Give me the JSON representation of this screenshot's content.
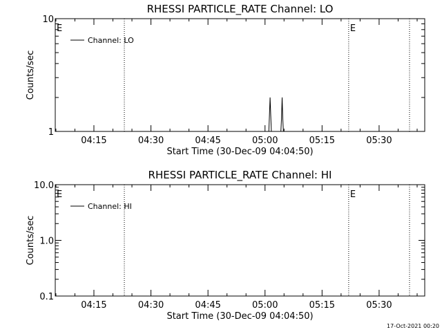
{
  "footer": {
    "timestamp": "17-Oct-2021 00:20"
  },
  "chart_data": [
    {
      "type": "line",
      "title": "RHESSI PARTICLE_RATE Channel: LO",
      "xlabel": "Start Time (30-Dec-09 04:04:50)",
      "ylabel": "Counts/sec",
      "yscale": "log",
      "ylim": [
        1,
        10
      ],
      "ytick_values": [
        1,
        10
      ],
      "ytick_labels": [
        "1",
        "10"
      ],
      "xlim": [
        "04:04:50",
        "05:42:00"
      ],
      "xtick_values": [
        "04:15",
        "04:30",
        "04:45",
        "05:00",
        "05:15",
        "05:30"
      ],
      "xtick_labels": [
        "04:15",
        "04:30",
        "04:45",
        "05:00",
        "05:15",
        "05:30"
      ],
      "legend": {
        "position": "top-left",
        "entries": [
          "Channel: LO"
        ]
      },
      "markers": [
        {
          "time": "04:04:50",
          "label": "E",
          "dotted": false
        },
        {
          "time": "04:23:00",
          "label": "",
          "dotted": true
        },
        {
          "time": "05:22:00",
          "label": "E",
          "dotted": true
        },
        {
          "time": "05:38:00",
          "label": "",
          "dotted": true
        }
      ],
      "series": [
        {
          "name": "Channel: LO",
          "x": [
            "04:04:50",
            "05:01:00",
            "05:01:10",
            "05:01:20",
            "05:01:30",
            "05:01:40",
            "05:04:10",
            "05:04:20",
            "05:04:30",
            "05:04:40",
            "05:04:50",
            "05:42:00"
          ],
          "y": [
            1,
            1,
            1.4,
            2,
            1.4,
            1,
            1,
            1.3,
            2,
            1.3,
            1,
            1
          ]
        }
      ]
    },
    {
      "type": "line",
      "title": "RHESSI PARTICLE_RATE Channel: HI",
      "xlabel": "Start Time (30-Dec-09 04:04:50)",
      "ylabel": "Counts/sec",
      "yscale": "log",
      "ylim": [
        0.1,
        10
      ],
      "ytick_values": [
        0.1,
        1,
        10
      ],
      "ytick_labels": [
        "0.1",
        "1.0",
        "10.0"
      ],
      "xlim": [
        "04:04:50",
        "05:42:00"
      ],
      "xtick_values": [
        "04:15",
        "04:30",
        "04:45",
        "05:00",
        "05:15",
        "05:30"
      ],
      "xtick_labels": [
        "04:15",
        "04:30",
        "04:45",
        "05:00",
        "05:15",
        "05:30"
      ],
      "legend": {
        "position": "top-left",
        "entries": [
          "Channel: HI"
        ]
      },
      "markers": [
        {
          "time": "04:04:50",
          "label": "E",
          "dotted": false
        },
        {
          "time": "04:23:00",
          "label": "",
          "dotted": true
        },
        {
          "time": "05:22:00",
          "label": "E",
          "dotted": true
        },
        {
          "time": "05:38:00",
          "label": "",
          "dotted": true
        }
      ],
      "series": [
        {
          "name": "Channel: HI",
          "x": [],
          "y": []
        }
      ]
    }
  ]
}
